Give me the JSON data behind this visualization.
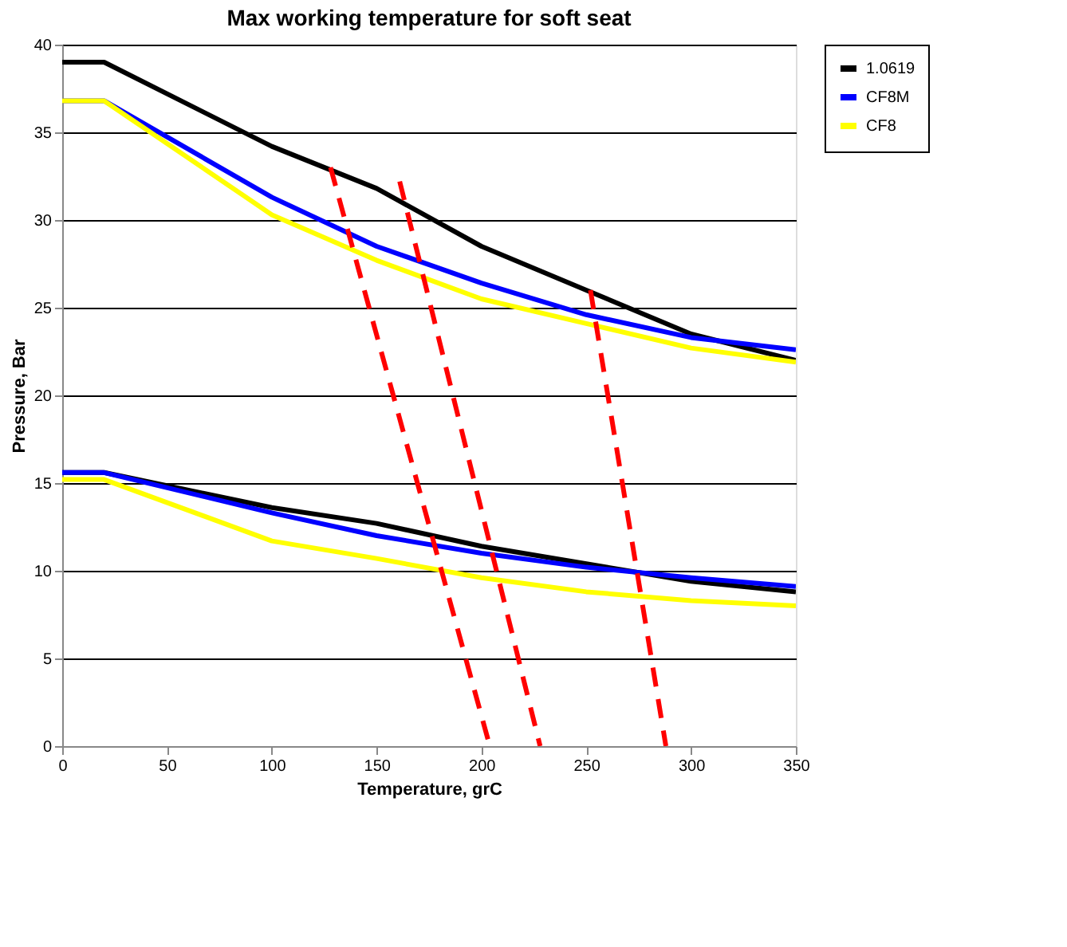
{
  "chart_data": {
    "type": "line",
    "title": "Max working temperature for soft seat",
    "xlabel": "Temperature, grC",
    "ylabel": "Pressure, Bar",
    "xlim": [
      0,
      350
    ],
    "xticks": [
      0,
      50,
      100,
      150,
      200,
      250,
      300,
      350
    ],
    "ylim": [
      0,
      40
    ],
    "yticks": [
      0,
      5,
      10,
      15,
      20,
      25,
      30,
      35,
      40
    ],
    "grid": "y",
    "legend": "right",
    "marker": "none",
    "series": [
      {
        "name": "1.0619",
        "color": "#000000",
        "x": [
          0,
          20,
          100,
          150,
          200,
          250,
          300,
          350
        ],
        "values": [
          39,
          39,
          34.2,
          31.8,
          28.5,
          26,
          23.5,
          22
        ]
      },
      {
        "name": "CF8M",
        "color": "#0000ff",
        "x": [
          0,
          20,
          100,
          150,
          200,
          250,
          300,
          350
        ],
        "values": [
          36.8,
          36.8,
          31.3,
          28.5,
          26.4,
          24.6,
          23.3,
          22.6
        ]
      },
      {
        "name": "CF8",
        "color": "#ffff00",
        "x": [
          0,
          20,
          100,
          150,
          200,
          250,
          300,
          350
        ],
        "values": [
          36.8,
          36.8,
          30.3,
          27.7,
          25.5,
          24.1,
          22.7,
          21.9
        ]
      },
      {
        "color": "#000000",
        "x": [
          0,
          20,
          100,
          150,
          200,
          250,
          300,
          350
        ],
        "values": [
          15.6,
          15.6,
          13.6,
          12.7,
          11.4,
          10.4,
          9.4,
          8.8
        ]
      },
      {
        "color": "#0000ff",
        "x": [
          0,
          20,
          100,
          150,
          200,
          250,
          300,
          350
        ],
        "values": [
          15.6,
          15.6,
          13.3,
          12,
          11,
          10.2,
          9.6,
          9.1
        ]
      },
      {
        "color": "#ffff00",
        "x": [
          0,
          20,
          100,
          150,
          200,
          250,
          300,
          350
        ],
        "values": [
          15.2,
          15.2,
          11.7,
          10.7,
          9.6,
          8.8,
          8.3,
          8
        ]
      },
      {
        "color": "#ff0000",
        "line_style": "dashed",
        "x": [
          128,
          204
        ],
        "values": [
          33,
          0
        ]
      },
      {
        "color": "#ff0000",
        "line_style": "dashed",
        "x": [
          161,
          228
        ],
        "values": [
          32.2,
          0
        ]
      },
      {
        "color": "#ff0000",
        "line_style": "dashed",
        "x": [
          252,
          288
        ],
        "values": [
          26,
          0
        ]
      }
    ]
  }
}
